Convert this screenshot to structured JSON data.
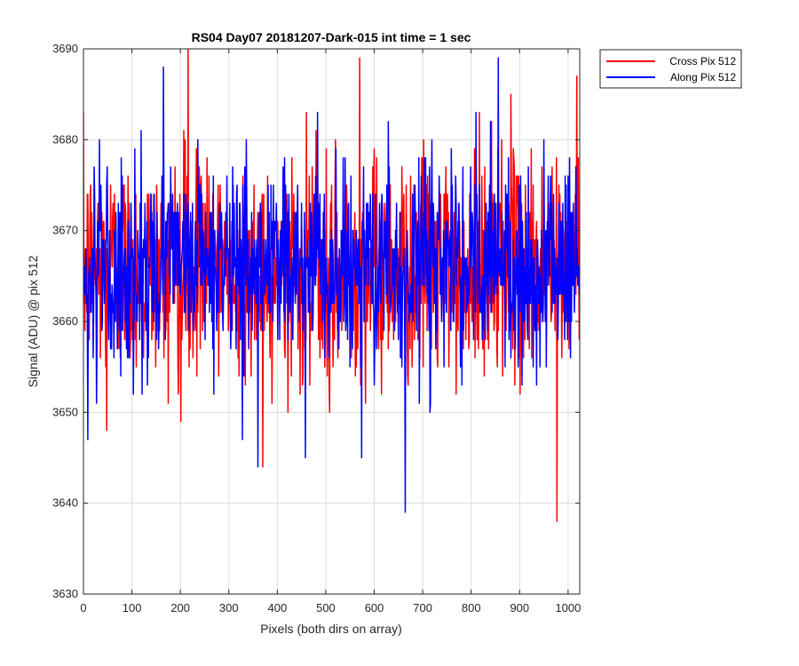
{
  "chart_data": {
    "type": "line",
    "title": "RS04 Day07 20181207-Dark-015 int time = 1 sec",
    "xlabel": "Pixels (both dirs on array)",
    "ylabel": "Signal (ADU) @ pix 512",
    "xlim": [
      0,
      1024
    ],
    "ylim": [
      3630,
      3690
    ],
    "xticks": [
      0,
      100,
      200,
      300,
      400,
      500,
      600,
      700,
      800,
      900,
      1000
    ],
    "yticks": [
      3630,
      3640,
      3650,
      3660,
      3670,
      3680,
      3690
    ],
    "grid": true,
    "legend_position": "outside-top-right",
    "series": [
      {
        "name": "Cross Pix 512",
        "color": "#ff0000",
        "mean": 3666,
        "noise_std": 6,
        "min": 3638,
        "max": 3690,
        "length": 1024,
        "notable_points": [
          {
            "x": 216,
            "y": 3690
          },
          {
            "x": 570,
            "y": 3689
          },
          {
            "x": 1018,
            "y": 3687
          },
          {
            "x": 370,
            "y": 3644
          },
          {
            "x": 977,
            "y": 3638
          },
          {
            "x": 201,
            "y": 3649
          },
          {
            "x": 48,
            "y": 3648
          }
        ]
      },
      {
        "name": "Along Pix 512",
        "color": "#0000ff",
        "mean": 3666,
        "noise_std": 5.5,
        "min": 3639,
        "max": 3689,
        "length": 1024,
        "notable_points": [
          {
            "x": 165,
            "y": 3688
          },
          {
            "x": 856,
            "y": 3689
          },
          {
            "x": 664,
            "y": 3639
          },
          {
            "x": 360,
            "y": 3644
          },
          {
            "x": 574,
            "y": 3645
          },
          {
            "x": 458,
            "y": 3645
          },
          {
            "x": 328,
            "y": 3647
          },
          {
            "x": 9,
            "y": 3647
          }
        ]
      }
    ]
  }
}
